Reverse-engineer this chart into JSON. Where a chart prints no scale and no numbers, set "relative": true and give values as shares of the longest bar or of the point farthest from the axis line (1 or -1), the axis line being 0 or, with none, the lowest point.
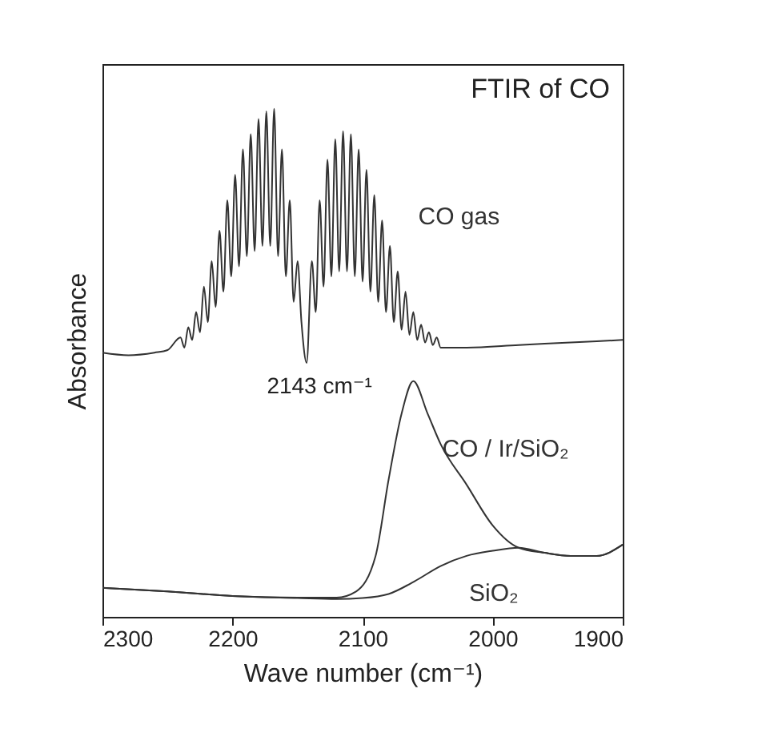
{
  "chart_data": {
    "type": "line",
    "title": "FTIR of CO",
    "xlabel": "Wave number (cm⁻¹)",
    "ylabel": "Absorbance",
    "relative": true,
    "xlim": [
      2300,
      1900
    ],
    "xticks": [
      2300,
      2200,
      2100,
      2000,
      1900
    ],
    "grid": false,
    "legend": false,
    "marker": "none",
    "line_style": "solid",
    "annotations": [
      {
        "text": "2143 cm⁻¹",
        "x": 2143,
        "y": 0.5
      }
    ],
    "series": [
      {
        "name": "CO gas",
        "color": "#333333",
        "x": [
          2300,
          2280,
          2260,
          2250,
          2240,
          2237,
          2234,
          2231,
          2228,
          2225,
          2222,
          2219,
          2216,
          2213,
          2210,
          2207,
          2204,
          2201,
          2198,
          2195,
          2192,
          2189,
          2186,
          2183,
          2180,
          2177,
          2174,
          2171,
          2168,
          2165,
          2162,
          2159,
          2156,
          2153,
          2150,
          2147,
          2143,
          2139,
          2136,
          2133,
          2130,
          2127,
          2124,
          2121,
          2118,
          2115,
          2112,
          2109,
          2106,
          2103,
          2100,
          2097,
          2094,
          2091,
          2088,
          2085,
          2082,
          2079,
          2076,
          2073,
          2070,
          2067,
          2064,
          2061,
          2058,
          2055,
          2052,
          2049,
          2046,
          2043,
          2040,
          2020,
          1980,
          1940,
          1900
        ],
        "values": [
          0.52,
          0.515,
          0.52,
          0.525,
          0.55,
          0.53,
          0.57,
          0.545,
          0.6,
          0.56,
          0.65,
          0.58,
          0.7,
          0.61,
          0.76,
          0.64,
          0.82,
          0.67,
          0.87,
          0.69,
          0.92,
          0.71,
          0.95,
          0.72,
          0.98,
          0.73,
          0.995,
          0.73,
          1.0,
          0.71,
          0.92,
          0.67,
          0.82,
          0.62,
          0.7,
          0.58,
          0.5,
          0.7,
          0.6,
          0.82,
          0.65,
          0.9,
          0.67,
          0.94,
          0.68,
          0.956,
          0.68,
          0.95,
          0.67,
          0.92,
          0.66,
          0.88,
          0.64,
          0.83,
          0.62,
          0.78,
          0.6,
          0.73,
          0.58,
          0.68,
          0.565,
          0.64,
          0.555,
          0.6,
          0.545,
          0.575,
          0.54,
          0.56,
          0.535,
          0.55,
          0.53,
          0.53,
          0.535,
          0.54,
          0.545
        ]
      },
      {
        "name": "CO / Ir/SiO₂",
        "color": "#333333",
        "x": [
          2300,
          2250,
          2200,
          2150,
          2120,
          2105,
          2090,
          2080,
          2070,
          2061,
          2050,
          2040,
          2020,
          2000,
          1980,
          1960,
          1940,
          1920,
          1900
        ],
        "values": [
          0.057,
          0.05,
          0.041,
          0.038,
          0.038,
          0.05,
          0.12,
          0.27,
          0.4,
          0.464,
          0.4,
          0.34,
          0.26,
          0.18,
          0.136,
          0.126,
          0.12,
          0.12,
          0.142
        ]
      },
      {
        "name": "SiO₂",
        "color": "#333333",
        "x": [
          2300,
          2250,
          2200,
          2150,
          2120,
          2100,
          2080,
          2060,
          2040,
          2020,
          2000,
          1980,
          1960,
          1940,
          1920,
          1900
        ],
        "values": [
          0.057,
          0.05,
          0.041,
          0.037,
          0.035,
          0.037,
          0.045,
          0.07,
          0.1,
          0.12,
          0.13,
          0.136,
          0.126,
          0.12,
          0.12,
          0.142
        ]
      }
    ]
  }
}
